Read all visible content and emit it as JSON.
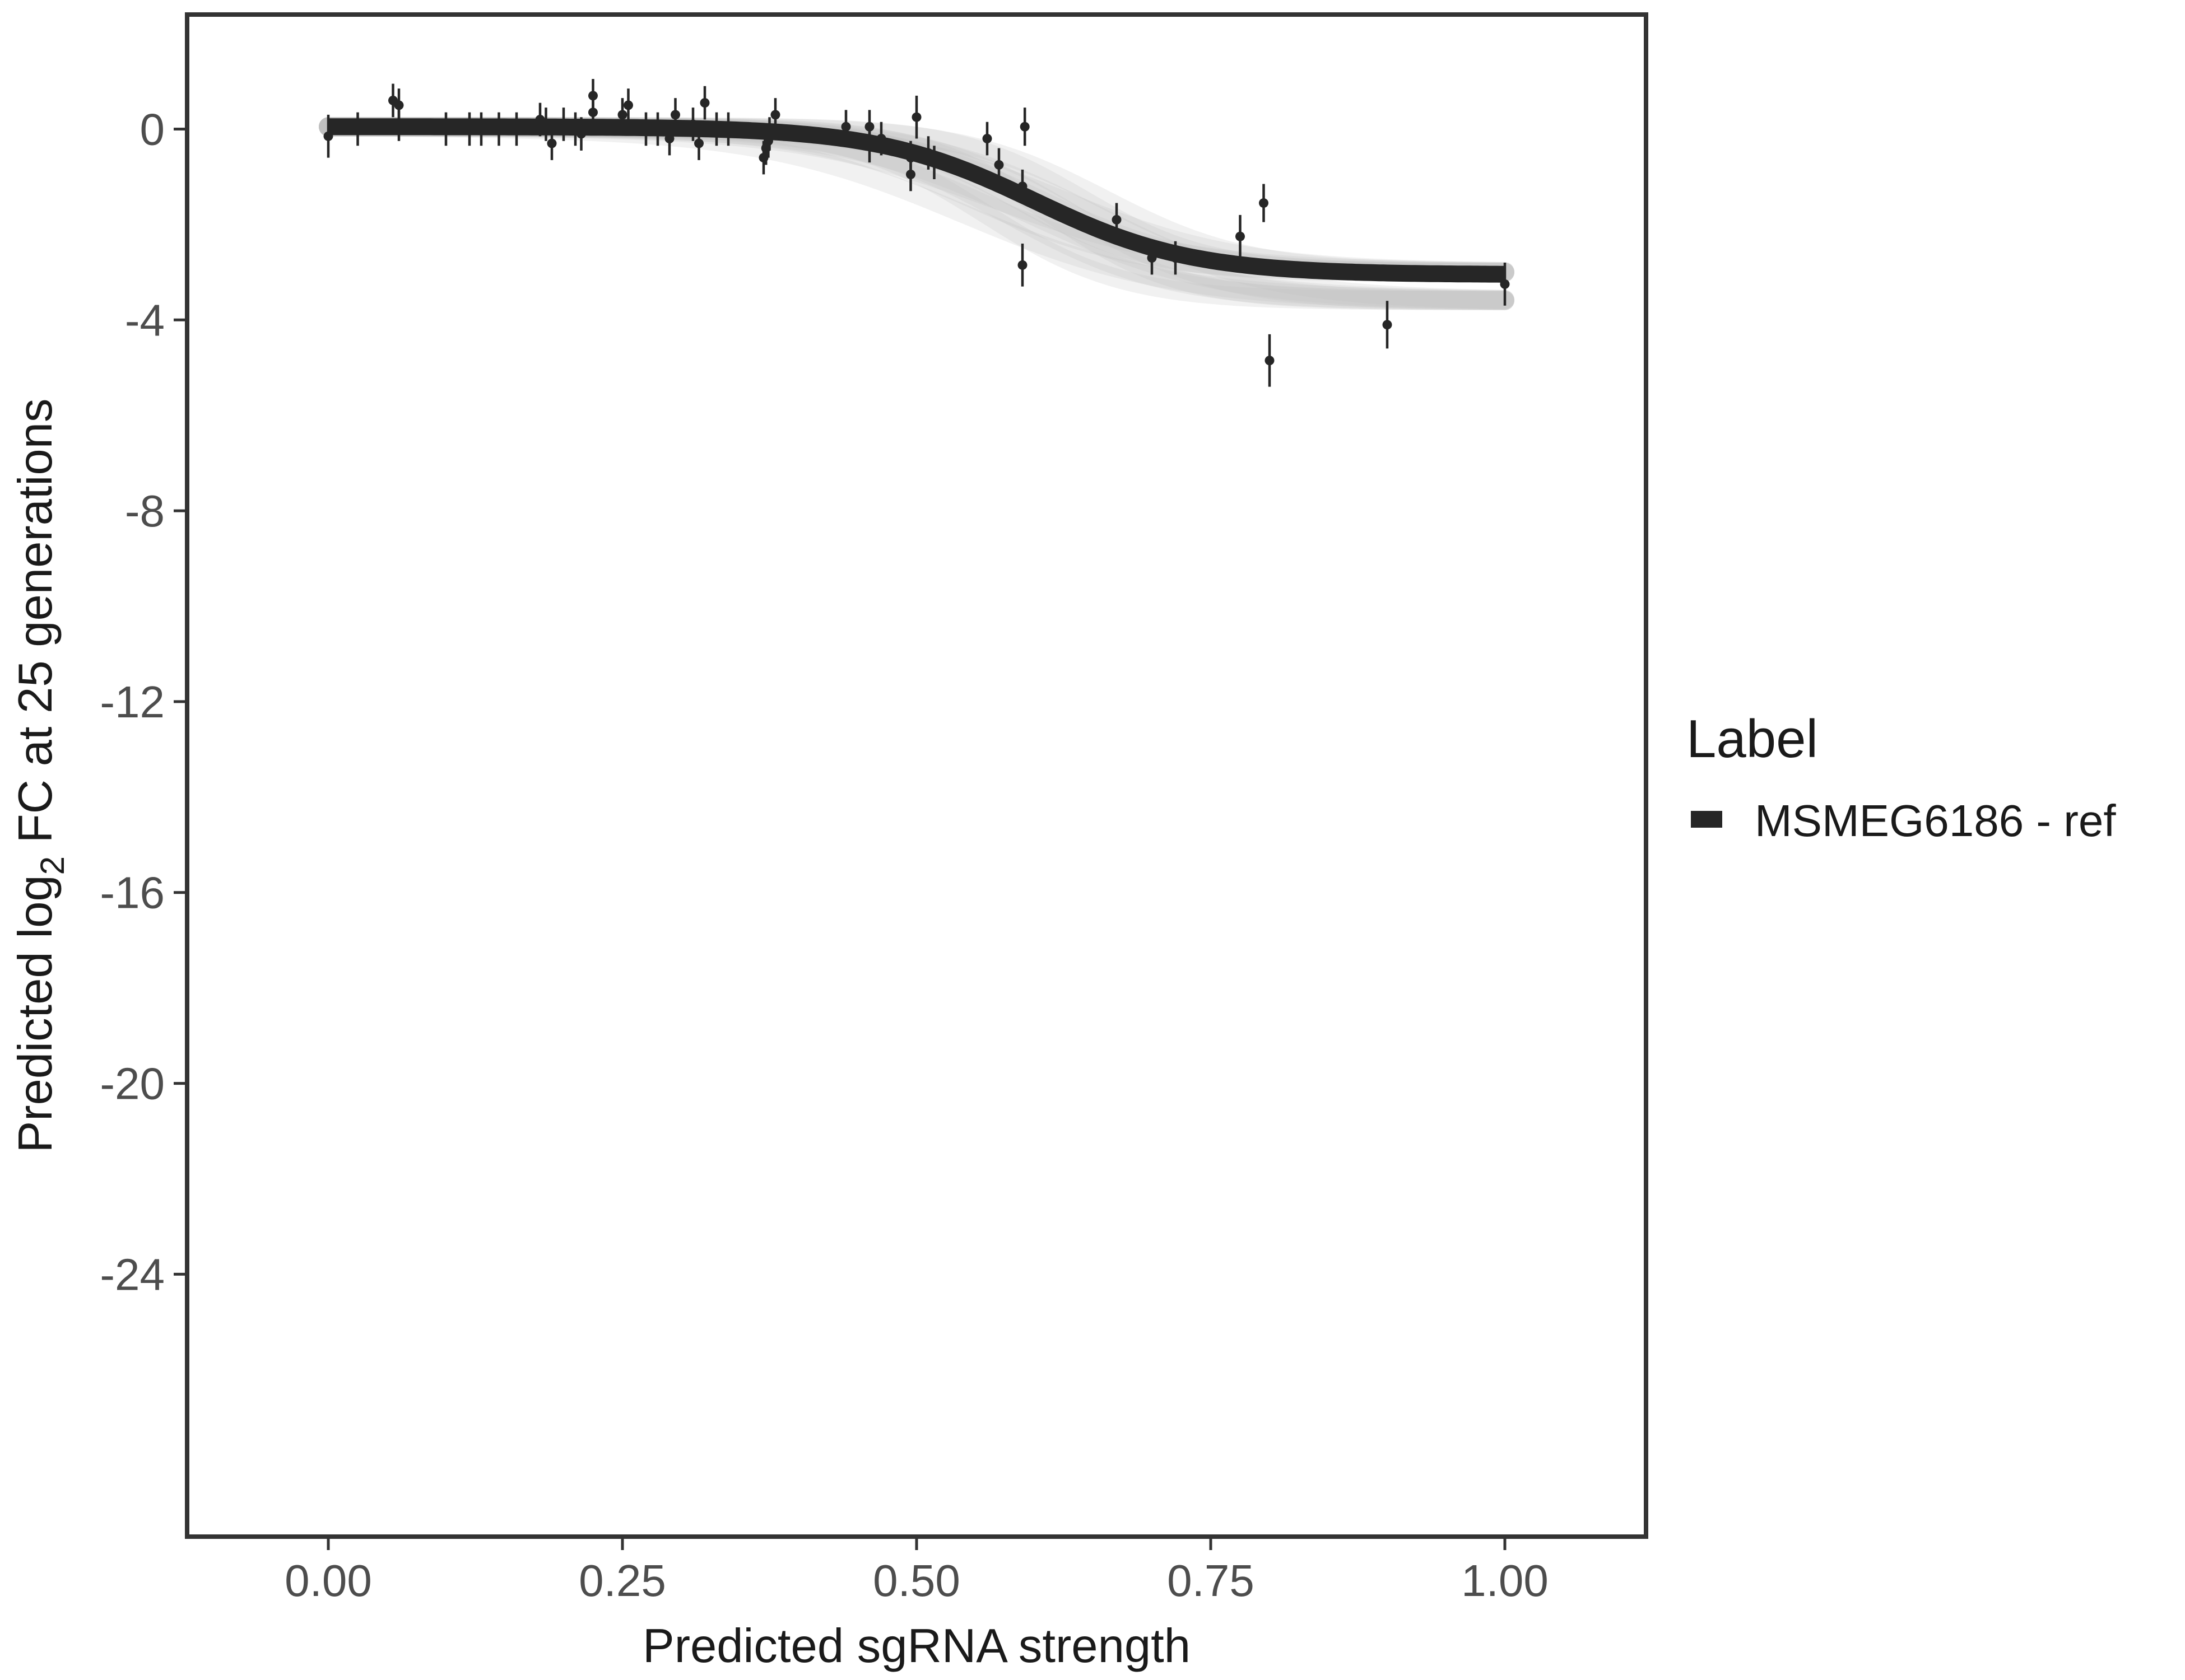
{
  "chart_data": {
    "type": "scatter",
    "title": "",
    "xlabel": "Predicted sgRNA strength",
    "ylabel": {
      "prefix": "Predicted  log",
      "subscript": "2",
      "suffix": " FC at 25 generations"
    },
    "xlim": [
      -0.12,
      1.12
    ],
    "ylim": [
      -29.5,
      2.4
    ],
    "x_ticks": [
      0.0,
      0.25,
      0.5,
      0.75,
      1.0
    ],
    "x_tick_labels": [
      "0.00",
      "0.25",
      "0.50",
      "0.75",
      "1.00"
    ],
    "y_ticks": [
      0,
      -4,
      -8,
      -12,
      -16,
      -20,
      -24
    ],
    "y_tick_labels": [
      "0",
      "-4",
      "-8",
      "-12",
      "-16",
      "-20",
      "-24"
    ],
    "grid": false,
    "legend": {
      "title": "Label",
      "position": "right",
      "entries": [
        {
          "name": "MSMEG6186 - ref",
          "color": "#262626"
        }
      ]
    },
    "fit_curve": {
      "model": "logistic",
      "upper": 0.05,
      "lower": -3.05,
      "midpoint": 0.6,
      "rate": 15,
      "band_color": "#bdbdbd",
      "line_color": "#262626"
    },
    "series": [
      {
        "name": "MSMEG6186 - ref",
        "color": "#262626",
        "points": [
          {
            "x": 0.0,
            "y": -0.15,
            "err": 0.45
          },
          {
            "x": 0.025,
            "y": 0.0,
            "err": 0.35
          },
          {
            "x": 0.055,
            "y": 0.6,
            "err": 0.35
          },
          {
            "x": 0.06,
            "y": 0.5,
            "err": 0.35
          },
          {
            "x": 0.06,
            "y": 0.1,
            "err": 0.35
          },
          {
            "x": 0.1,
            "y": 0.0,
            "err": 0.35
          },
          {
            "x": 0.12,
            "y": 0.0,
            "err": 0.35
          },
          {
            "x": 0.13,
            "y": 0.0,
            "err": 0.35
          },
          {
            "x": 0.145,
            "y": 0.0,
            "err": 0.35
          },
          {
            "x": 0.16,
            "y": 0.0,
            "err": 0.35
          },
          {
            "x": 0.18,
            "y": 0.2,
            "err": 0.35
          },
          {
            "x": 0.185,
            "y": 0.1,
            "err": 0.35
          },
          {
            "x": 0.19,
            "y": -0.3,
            "err": 0.35
          },
          {
            "x": 0.2,
            "y": 0.1,
            "err": 0.35
          },
          {
            "x": 0.21,
            "y": 0.0,
            "err": 0.35
          },
          {
            "x": 0.215,
            "y": -0.1,
            "err": 0.35
          },
          {
            "x": 0.225,
            "y": 0.7,
            "err": 0.35
          },
          {
            "x": 0.225,
            "y": 0.35,
            "err": 0.35
          },
          {
            "x": 0.25,
            "y": 0.3,
            "err": 0.35
          },
          {
            "x": 0.255,
            "y": 0.5,
            "err": 0.35
          },
          {
            "x": 0.27,
            "y": 0.0,
            "err": 0.35
          },
          {
            "x": 0.28,
            "y": 0.0,
            "err": 0.35
          },
          {
            "x": 0.29,
            "y": -0.2,
            "err": 0.35
          },
          {
            "x": 0.295,
            "y": 0.3,
            "err": 0.35
          },
          {
            "x": 0.31,
            "y": 0.1,
            "err": 0.35
          },
          {
            "x": 0.315,
            "y": -0.3,
            "err": 0.35
          },
          {
            "x": 0.32,
            "y": 0.55,
            "err": 0.35
          },
          {
            "x": 0.33,
            "y": 0.0,
            "err": 0.35
          },
          {
            "x": 0.34,
            "y": 0.0,
            "err": 0.35
          },
          {
            "x": 0.37,
            "y": -0.6,
            "err": 0.35
          },
          {
            "x": 0.372,
            "y": -0.4,
            "err": 0.35
          },
          {
            "x": 0.374,
            "y": -0.25,
            "err": 0.35
          },
          {
            "x": 0.375,
            "y": -0.1,
            "err": 0.35
          },
          {
            "x": 0.38,
            "y": 0.3,
            "err": 0.35
          },
          {
            "x": 0.44,
            "y": 0.05,
            "err": 0.35
          },
          {
            "x": 0.46,
            "y": -0.35,
            "err": 0.35
          },
          {
            "x": 0.46,
            "y": 0.05,
            "err": 0.35
          },
          {
            "x": 0.47,
            "y": -0.2,
            "err": 0.35
          },
          {
            "x": 0.495,
            "y": -0.95,
            "err": 0.35
          },
          {
            "x": 0.495,
            "y": -0.6,
            "err": 0.35
          },
          {
            "x": 0.5,
            "y": 0.25,
            "err": 0.45
          },
          {
            "x": 0.51,
            "y": -0.5,
            "err": 0.35
          },
          {
            "x": 0.515,
            "y": -0.7,
            "err": 0.35
          },
          {
            "x": 0.56,
            "y": -0.2,
            "err": 0.35
          },
          {
            "x": 0.57,
            "y": -0.75,
            "err": 0.35
          },
          {
            "x": 0.59,
            "y": -1.2,
            "err": 0.35
          },
          {
            "x": 0.59,
            "y": -2.85,
            "err": 0.45
          },
          {
            "x": 0.592,
            "y": 0.05,
            "err": 0.4
          },
          {
            "x": 0.67,
            "y": -1.9,
            "err": 0.35
          },
          {
            "x": 0.7,
            "y": -2.7,
            "err": 0.35
          },
          {
            "x": 0.72,
            "y": -2.7,
            "err": 0.35
          },
          {
            "x": 0.775,
            "y": -2.25,
            "err": 0.45
          },
          {
            "x": 0.795,
            "y": -1.55,
            "err": 0.4
          },
          {
            "x": 0.8,
            "y": -4.85,
            "err": 0.55
          },
          {
            "x": 0.9,
            "y": -4.1,
            "err": 0.5
          },
          {
            "x": 1.0,
            "y": -3.25,
            "err": 0.45
          }
        ]
      }
    ]
  }
}
